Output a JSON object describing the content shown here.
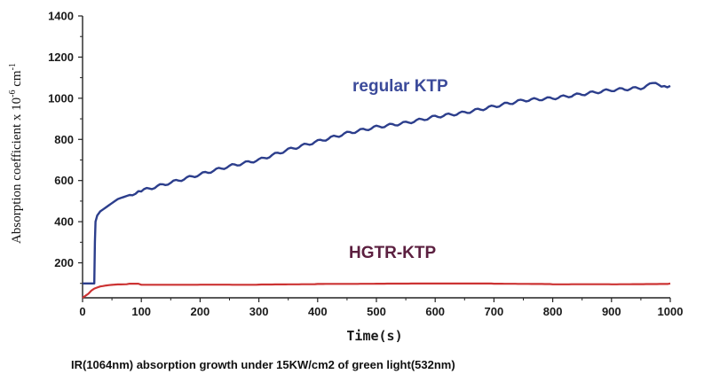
{
  "chart_data": {
    "type": "line",
    "title": "",
    "caption": "IR(1064nm) absorption growth under 15KW/cm2 of green light(532nm)",
    "xlabel": "Time(s)",
    "ylabel": "Absorption coefficient x 10",
    "ylabel_exponent": "-6",
    "ylabel_unit": "cm",
    "ylabel_unit_exponent": "-1",
    "xlim": [
      0,
      1000
    ],
    "ylim": [
      30,
      1400
    ],
    "xticks": [
      "0",
      "100",
      "200",
      "300",
      "400",
      "500",
      "600",
      "700",
      "800",
      "900",
      "1000"
    ],
    "yticks": [
      "200",
      "400",
      "600",
      "800",
      "1000",
      "1200",
      "1400"
    ],
    "grid": false,
    "legend": "inline labels",
    "series": [
      {
        "name": "regular KTP",
        "color": "#2c3e8c",
        "x": [
          0,
          20,
          21,
          22,
          25,
          30,
          40,
          60,
          80,
          100,
          150,
          200,
          250,
          300,
          350,
          400,
          450,
          500,
          550,
          600,
          650,
          700,
          750,
          800,
          850,
          900,
          950,
          970,
          990,
          1000
        ],
        "y": [
          100,
          100,
          300,
          400,
          430,
          450,
          470,
          510,
          530,
          550,
          590,
          630,
          670,
          700,
          750,
          790,
          830,
          860,
          880,
          910,
          930,
          960,
          990,
          1000,
          1020,
          1040,
          1050,
          1070,
          1060,
          1060
        ]
      },
      {
        "name": "HGTR-KTP",
        "color": "#cc3333",
        "x": [
          0,
          10,
          15,
          20,
          30,
          40,
          50,
          60,
          80,
          100,
          200,
          300,
          400,
          500,
          600,
          700,
          800,
          900,
          1000
        ],
        "y": [
          30,
          50,
          65,
          75,
          85,
          90,
          93,
          95,
          96,
          96,
          96,
          95,
          96,
          96,
          97,
          98,
          97,
          98,
          100
        ]
      }
    ],
    "series_label_colors": {
      "regular KTP": "#3b4a9a",
      "HGTR-KTP": "#5c2040"
    }
  }
}
